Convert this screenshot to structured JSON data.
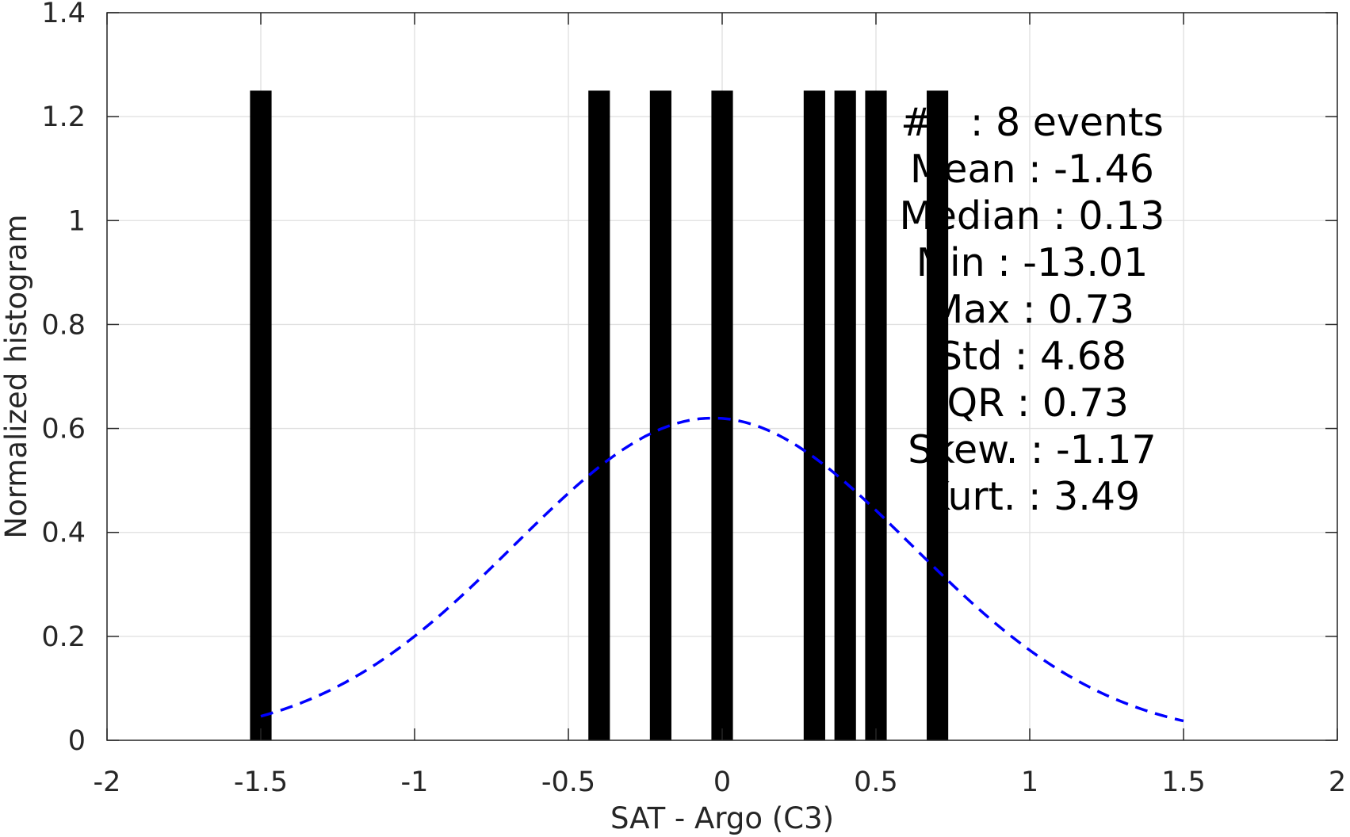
{
  "chart_data": {
    "type": "bar",
    "title": "",
    "xlabel": "SAT - Argo (C3)",
    "ylabel": "Normalized histogram",
    "xlim": [
      -2,
      2
    ],
    "ylim": [
      0,
      1.4
    ],
    "grid": true,
    "x_ticks": [
      -2,
      -1.5,
      -1,
      -0.5,
      0,
      0.5,
      1,
      1.5,
      2
    ],
    "x_tick_labels": [
      "-2",
      "-1.5",
      "-1",
      "-0.5",
      "0",
      "0.5",
      "1",
      "1.5",
      "2"
    ],
    "y_ticks": [
      0,
      0.2,
      0.4,
      0.6,
      0.8,
      1,
      1.2,
      1.4
    ],
    "y_tick_labels": [
      "0",
      "0.2",
      "0.4",
      "0.6",
      "0.8",
      "1",
      "1.2",
      "1.4"
    ],
    "bar_width": 0.07,
    "bars": [
      {
        "x": -1.5,
        "value": 1.25
      },
      {
        "x": -0.4,
        "value": 1.25
      },
      {
        "x": -0.2,
        "value": 1.25
      },
      {
        "x": 0.0,
        "value": 1.25
      },
      {
        "x": 0.3,
        "value": 1.25
      },
      {
        "x": 0.4,
        "value": 1.25
      },
      {
        "x": 0.5,
        "value": 1.25
      },
      {
        "x": 0.7,
        "value": 1.25
      }
    ],
    "bar_color": "#000000",
    "fit_curve": {
      "style": "dashed",
      "color": "#0000ff",
      "mean": -0.03,
      "std": 0.645,
      "peak": 0.62,
      "x_range": [
        -1.5,
        1.5
      ]
    },
    "stats_lines": [
      "#   : 8 events",
      "Mean : -1.46",
      "Median : 0.13",
      "Min : -13.01",
      "Max : 0.73",
      "Std : 4.68",
      "IQR : 0.73",
      "Skew. : -1.17",
      "Kurt. : 3.49"
    ]
  }
}
